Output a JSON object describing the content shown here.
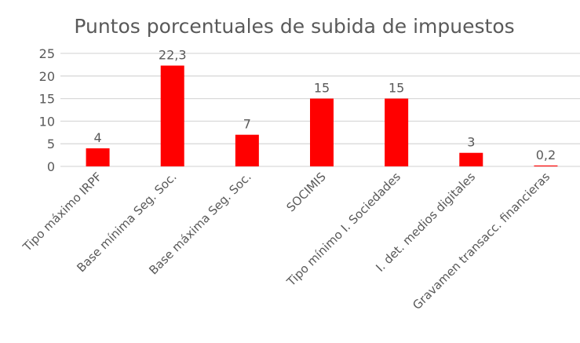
{
  "chart_data": {
    "type": "bar",
    "title": "Puntos porcentuales de subida de impuestos",
    "xlabel": "",
    "ylabel": "",
    "categories": [
      "Tipo máximo IRPF",
      "Base mínima Seg. Soc.",
      "Base máxima Seg. Soc.",
      "SOCIMIS",
      "Tipo mínimo I. Sociedades",
      "I. det. medios digitales",
      "Gravamen transacc. financieras"
    ],
    "values": [
      4,
      22.3,
      7,
      15,
      15,
      3,
      0.2
    ],
    "data_labels": [
      "4",
      "22,3",
      "7",
      "15",
      "15",
      "3",
      "0,2"
    ],
    "ylim": [
      0,
      25
    ],
    "yticks": [
      0,
      5,
      10,
      15,
      20,
      25
    ],
    "grid": true,
    "legend": "none",
    "colors": {
      "bar": "#ff0000",
      "grid": "#d9d9d9",
      "text": "#595959"
    }
  }
}
